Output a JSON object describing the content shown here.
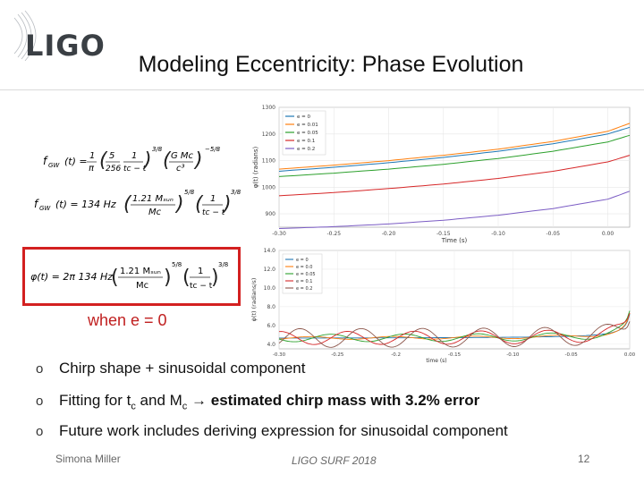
{
  "header": {
    "logo_text": "LIGO",
    "title": "Modeling Eccentricity: Phase Evolution"
  },
  "equations": {
    "eq1_lhs": "f",
    "eq1_lhs_sub": "GW",
    "eq1_fn": "(t) =",
    "eq1_frac1_num": "1",
    "eq1_frac1_den": "π",
    "eq1_frac2_num": "5",
    "eq1_frac2_den": "256",
    "eq1_frac3_num": "1",
    "eq1_frac3_den": "tᴄ − t",
    "eq1_exp1": "3/8",
    "eq1_frac4_num": "G Mᴄ",
    "eq1_frac4_den": "c³",
    "eq1_exp2": "−5/8",
    "eq2_lhs": "f",
    "eq2_lhs_sub": "GW",
    "eq2_fn": "(t) = 134 Hz",
    "eq2_frac1_num": "1.21 Mₛᵤₙ",
    "eq2_frac1_den": "Mᴄ",
    "eq2_exp1": "5/8",
    "eq2_frac2_num": "1",
    "eq2_frac2_den": "tᴄ − t",
    "eq2_exp2": "3/8",
    "eq3_lhs": "φ(t) = 2π 134 Hz",
    "eq3_frac1_num": "1.21 Mₛᵤₙ",
    "eq3_frac1_den": "Mᴄ",
    "eq3_exp1": "5/8",
    "eq3_frac2_num": "1",
    "eq3_frac2_den": "tᴄ − t",
    "eq3_exp2": "3/8"
  },
  "condition_label": "when e = 0",
  "bullets": [
    {
      "marker": "o",
      "text": "Chirp shape + sinusoidal component"
    },
    {
      "marker": "o",
      "pre": "Fitting for t",
      "sub1": "c",
      "mid": " and M",
      "sub2": "c",
      "arrow": " → ",
      "bold": "estimated chirp mass with 3.2% error"
    },
    {
      "marker": "o",
      "text": "Future work includes deriving expression for sinusoidal component"
    }
  ],
  "footer": {
    "author": "Simona Miller",
    "event": "LIGO SURF 2018",
    "page": "12"
  },
  "chart_data": [
    {
      "type": "line",
      "title": "",
      "xlabel": "Time (s)",
      "ylabel": "φ(t) (radians)",
      "xlim": [
        -0.3,
        0.02
      ],
      "ylim": [
        850,
        1300
      ],
      "xticks": [
        "-0.30",
        "-0.25",
        "-0.20",
        "-0.15",
        "-0.10",
        "-0.05",
        "0.00"
      ],
      "yticks": [
        "900",
        "1000",
        "1100",
        "1200",
        "1300"
      ],
      "x": [
        -0.3,
        -0.25,
        -0.2,
        -0.15,
        -0.1,
        -0.05,
        0.0,
        0.02
      ],
      "series": [
        {
          "name": "e = 0",
          "color": "#1f77b4",
          "values": [
            1060,
            1075,
            1092,
            1112,
            1135,
            1163,
            1200,
            1225
          ]
        },
        {
          "name": "e = 0.01",
          "color": "#ff7f0e",
          "values": [
            1068,
            1083,
            1100,
            1120,
            1143,
            1172,
            1210,
            1240
          ]
        },
        {
          "name": "e = 0.05",
          "color": "#2ca02c",
          "values": [
            1040,
            1053,
            1068,
            1086,
            1108,
            1135,
            1170,
            1195
          ]
        },
        {
          "name": "e = 0.1",
          "color": "#d62728",
          "values": [
            968,
            980,
            995,
            1012,
            1033,
            1060,
            1095,
            1120
          ]
        },
        {
          "name": "e = 0.2",
          "color": "#7b5cc4",
          "values": [
            845,
            852,
            862,
            876,
            895,
            920,
            955,
            985
          ]
        }
      ],
      "legend": "top-left"
    },
    {
      "type": "line",
      "title": "",
      "xlabel": "time (s)",
      "ylabel": "φ̇(t) (radians/s)",
      "xlim": [
        -0.3,
        0.0
      ],
      "ylim": [
        3.5,
        14.0
      ],
      "xticks": [
        "-0.30",
        "-0.25",
        "-0.2",
        "-0.15",
        "-0.10",
        "-0.05",
        "0.00"
      ],
      "yticks": [
        "4.0",
        "6.0",
        "8.0",
        "10.0",
        "12.0",
        "14.0"
      ],
      "series": [
        {
          "name": "e = 0",
          "color": "#1f77b4"
        },
        {
          "name": "e = 0.0",
          "color": "#ff7f0e"
        },
        {
          "name": "e = 0.05",
          "color": "#2ca02c"
        },
        {
          "name": "e = 0.1",
          "color": "#d62728"
        },
        {
          "name": "e = 0.2",
          "color": "#8c564b"
        }
      ],
      "legend": "top-left"
    }
  ]
}
